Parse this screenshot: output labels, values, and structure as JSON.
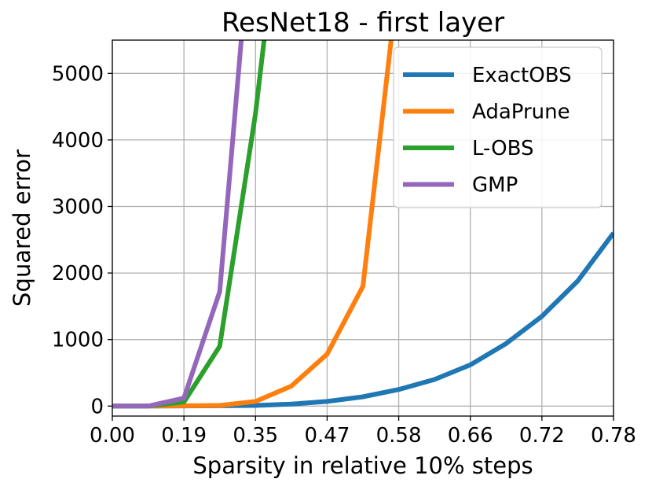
{
  "chart_data": {
    "type": "line",
    "title": "ResNet18 - first layer",
    "xlabel": "Sparsity in relative 10% steps",
    "ylabel": "Squared error",
    "x_tick_labels": [
      "0.00",
      "0.19",
      "0.35",
      "0.47",
      "0.58",
      "0.66",
      "0.72",
      "0.78"
    ],
    "y_ticks": [
      0,
      1000,
      2000,
      3000,
      4000,
      5000
    ],
    "xlim": [
      0,
      14
    ],
    "ylim": [
      -150,
      5500
    ],
    "grid": true,
    "legend_position": "top-right",
    "x": [
      0,
      1,
      2,
      3,
      4,
      5,
      6,
      7,
      8,
      9,
      10,
      11,
      12,
      13,
      14
    ],
    "series": [
      {
        "name": "ExactOBS",
        "color": "#1f77b4",
        "values": [
          0,
          0,
          2,
          5,
          10,
          30,
          70,
          140,
          250,
          400,
          620,
          940,
          1350,
          1880,
          2600
        ]
      },
      {
        "name": "AdaPrune",
        "color": "#ff7f0e",
        "values": [
          0,
          0,
          5,
          10,
          70,
          300,
          780,
          1800,
          6500,
          null,
          null,
          null,
          null,
          null,
          null
        ]
      },
      {
        "name": "L-OBS",
        "color": "#2ca02c",
        "values": [
          0,
          0,
          60,
          900,
          4400,
          9000,
          null,
          null,
          null,
          null,
          null,
          null,
          null,
          null,
          null
        ]
      },
      {
        "name": "GMP",
        "color": "#9467bd",
        "values": [
          0,
          0,
          120,
          1720,
          8000,
          null,
          null,
          null,
          null,
          null,
          null,
          null,
          null,
          null,
          null
        ]
      }
    ]
  }
}
